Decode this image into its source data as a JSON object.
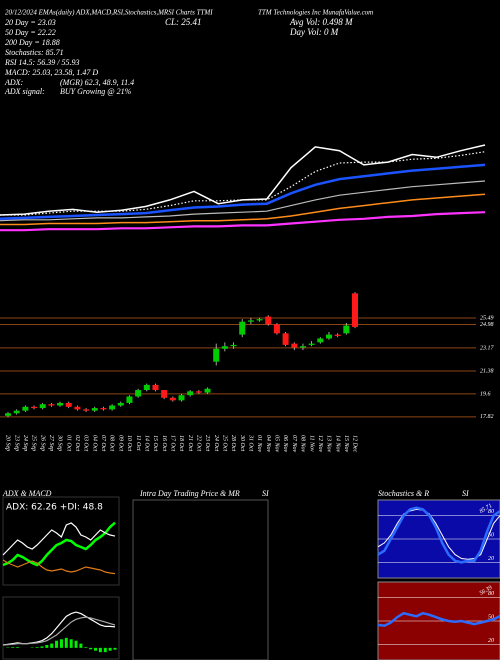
{
  "chart_data": [
    {
      "type": "line",
      "annotations": [
        "20/12/2024 EMAs(daily) ADX,MACD,RSI,Stochastics,MRSI Charts TTMI",
        "TTM Technologies Inc MunafaValue.com",
        "CL: 25.41",
        "Avg Vol: 0.498 M",
        "Day Vol: 0 M",
        "20 Day = 23.03",
        "50 Day = 22.22",
        "200 Day = 18.88",
        "Stochastics: 85.71",
        "RSI 14.5: 56.39 / 55.93",
        "MACD: 25.03, 23.58, 1.47 D",
        "ADX:",
        "(MGR) 62.3, 48.9, 11.4",
        "ADX  signal:",
        "BUY Growing @ 21%"
      ],
      "ylim": [
        15.36,
        26.99
      ],
      "series": [
        {
          "color": "#ffffff",
          "values": [
            18.0,
            18.1,
            18.4,
            18.6,
            18.3,
            18.5,
            18.9,
            19.6,
            20.5,
            19.2,
            19.6,
            19.7,
            23.0,
            25.2,
            24.8,
            23.3,
            23.6,
            24.4,
            24.1,
            24.8,
            25.4
          ]
        },
        {
          "color": "#ffffff",
          "dotted": true,
          "values": [
            18.0,
            18.0,
            18.2,
            18.4,
            18.4,
            18.4,
            18.6,
            19.0,
            19.5,
            19.5,
            19.6,
            19.6,
            21.0,
            22.6,
            23.5,
            23.6,
            23.6,
            23.9,
            24.0,
            24.3,
            24.7
          ]
        },
        {
          "color": "#1a53ff",
          "values": [
            17.6,
            17.7,
            17.8,
            17.9,
            18.0,
            18.1,
            18.2,
            18.5,
            18.8,
            18.9,
            19.1,
            19.2,
            20.3,
            21.2,
            21.8,
            22.1,
            22.4,
            22.7,
            22.9,
            23.1,
            23.3
          ]
        },
        {
          "color": "#bbbbbb",
          "values": [
            17.4,
            17.5,
            17.5,
            17.6,
            17.7,
            17.7,
            17.8,
            17.9,
            18.1,
            18.2,
            18.3,
            18.4,
            19.0,
            19.6,
            20.1,
            20.4,
            20.7,
            21.0,
            21.2,
            21.4,
            21.6
          ]
        },
        {
          "color": "#ff8c1a",
          "values": [
            17.0,
            17.0,
            17.1,
            17.1,
            17.1,
            17.2,
            17.2,
            17.3,
            17.4,
            17.4,
            17.5,
            17.6,
            17.9,
            18.3,
            18.7,
            19.0,
            19.3,
            19.6,
            19.8,
            20.0,
            20.2
          ]
        },
        {
          "color": "#ff33ff",
          "values": [
            16.4,
            16.4,
            16.5,
            16.5,
            16.5,
            16.6,
            16.6,
            16.7,
            16.8,
            16.8,
            16.9,
            16.9,
            17.1,
            17.3,
            17.5,
            17.6,
            17.8,
            17.9,
            18.1,
            18.2,
            18.3
          ]
        }
      ]
    },
    {
      "type": "candlestick",
      "categories": [
        "20 Sep",
        "23 Sep",
        "24 Sep",
        "25 Sep",
        "26 Sep",
        "27 Sep",
        "30 Sep",
        "01 Oct",
        "02 Oct",
        "03 Oct",
        "04 Oct",
        "07 Oct",
        "08 Oct",
        "09 Oct",
        "10 Oct",
        "11 Oct",
        "14 Oct",
        "15 Oct",
        "16 Oct",
        "17 Oct",
        "18 Oct",
        "21 Oct",
        "22 Oct",
        "23 Oct",
        "24 Oct",
        "25 Oct",
        "28 Oct",
        "30 Oct",
        "31 Oct",
        "01 Nov",
        "04 Nov",
        "05 Nov",
        "06 Nov",
        "07 Nov",
        "08 Nov",
        "11 Nov",
        "12 Nov",
        "13 Nov",
        "14 Nov",
        "15 Nov",
        "12 Dec"
      ],
      "open": [
        17.9,
        18.1,
        18.3,
        18.6,
        18.5,
        18.8,
        18.7,
        18.9,
        18.6,
        18.4,
        18.3,
        18.5,
        18.4,
        18.7,
        18.9,
        19.4,
        19.9,
        20.3,
        19.9,
        19.3,
        19.1,
        19.5,
        19.8,
        19.7,
        22.1,
        23.1,
        23.3,
        24.2,
        25.2,
        25.3,
        25.6,
        25.0,
        24.3,
        23.5,
        23.2,
        23.4,
        23.6,
        23.9,
        24.2,
        24.3,
        27.4
      ],
      "close": [
        18.1,
        18.3,
        18.6,
        18.5,
        18.8,
        18.7,
        18.9,
        18.6,
        18.4,
        18.3,
        18.5,
        18.4,
        18.7,
        18.9,
        19.4,
        19.9,
        20.3,
        19.9,
        19.3,
        19.1,
        19.5,
        19.8,
        19.7,
        20.0,
        23.1,
        23.3,
        23.4,
        25.2,
        25.3,
        25.4,
        25.0,
        24.3,
        23.4,
        23.2,
        23.3,
        23.5,
        23.9,
        24.2,
        24.1,
        24.9,
        24.8
      ],
      "high": [
        18.2,
        18.4,
        18.7,
        18.7,
        18.9,
        18.9,
        19.0,
        19.0,
        18.7,
        18.5,
        18.6,
        18.6,
        18.8,
        19.0,
        19.5,
        20.0,
        20.4,
        20.4,
        19.9,
        19.4,
        19.6,
        19.9,
        19.9,
        20.1,
        23.5,
        23.6,
        23.6,
        25.4,
        25.5,
        25.5,
        25.7,
        25.1,
        24.4,
        23.6,
        23.5,
        23.7,
        24.0,
        24.4,
        24.3,
        25.1,
        27.5
      ],
      "low": [
        17.8,
        18.0,
        18.2,
        18.4,
        18.4,
        18.6,
        18.6,
        18.5,
        18.3,
        18.2,
        18.2,
        18.3,
        18.3,
        18.6,
        18.8,
        19.3,
        19.8,
        19.8,
        19.2,
        19.0,
        19.0,
        19.4,
        19.6,
        19.6,
        21.8,
        22.9,
        23.1,
        24.0,
        25.0,
        25.2,
        24.9,
        24.2,
        23.3,
        23.0,
        23.0,
        23.3,
        23.5,
        23.8,
        24.0,
        24.2,
        24.7
      ],
      "up_color": "#00cc00",
      "down_color": "#ff1a1a",
      "grid_color": "#8b4513",
      "ylim": [
        16.8,
        27.66
      ],
      "yticks": [
        25.49,
        24.98,
        23.17,
        21.38,
        19.6,
        17.82
      ]
    },
    {
      "type": "line",
      "title": "ADX  & MACD",
      "annotations": [
        "ADX: 62.26  +DI: 48.8"
      ],
      "ylim": [
        0,
        80
      ],
      "series": [
        {
          "color": "#00ff00",
          "values": [
            20,
            22,
            25,
            30,
            28,
            25,
            22,
            20,
            24,
            30,
            35,
            40,
            42,
            45,
            44,
            40,
            38,
            36,
            40,
            45,
            48,
            52,
            58,
            62.3
          ]
        },
        {
          "color": "#ffffff",
          "values": [
            30,
            35,
            40,
            45,
            42,
            38,
            36,
            40,
            45,
            50,
            55,
            52,
            48,
            60,
            62,
            58,
            50,
            48,
            45,
            50,
            55,
            52,
            50,
            48.9
          ]
        },
        {
          "color": "#e07b1a",
          "values": [
            25,
            22,
            20,
            18,
            20,
            22,
            24,
            22,
            18,
            15,
            14,
            15,
            16,
            14,
            13,
            14,
            16,
            18,
            17,
            16,
            15,
            13,
            12,
            11.4
          ]
        }
      ]
    },
    {
      "type": "macd",
      "ylim": [
        -0.5,
        3
      ],
      "histogram": {
        "color": "#00ee00",
        "values": [
          0.0,
          0.03,
          0.05,
          0.05,
          0.0,
          0.0,
          0.03,
          0.05,
          0.1,
          0.2,
          0.3,
          0.5,
          0.6,
          0.7,
          0.6,
          0.5,
          0.3,
          0.05,
          -0.1,
          -0.2,
          -0.3,
          -0.3,
          -0.2,
          -0.13
        ]
      },
      "series": [
        {
          "color": "#ffffff",
          "values": [
            0.2,
            0.25,
            0.3,
            0.35,
            0.3,
            0.3,
            0.35,
            0.4,
            0.5,
            0.7,
            1.0,
            1.4,
            1.8,
            2.2,
            2.4,
            2.5,
            2.4,
            2.2,
            2.0,
            1.8,
            1.6,
            1.5,
            1.5,
            1.47
          ]
        },
        {
          "color": "#aaaaaa",
          "values": [
            0.2,
            0.22,
            0.25,
            0.3,
            0.3,
            0.3,
            0.32,
            0.35,
            0.4,
            0.5,
            0.7,
            0.9,
            1.2,
            1.5,
            1.8,
            2.0,
            2.1,
            2.15,
            2.1,
            2.0,
            1.9,
            1.8,
            1.7,
            1.6
          ]
        }
      ]
    },
    {
      "type": "intraday",
      "title": "Intra Day Trading Price & MR",
      "subtitle": "SI"
    },
    {
      "type": "oscillator",
      "title": "Stochastics & R",
      "subtitle": "SI",
      "background": "#0a0aa8",
      "annotations": [
        "85.71"
      ],
      "ylim": [
        0,
        100
      ],
      "yticks": [
        80,
        50,
        20
      ],
      "series": [
        {
          "color": "#ffffff",
          "values": [
            40,
            45,
            55,
            70,
            82,
            86,
            88,
            87,
            82,
            70,
            55,
            40,
            30,
            25,
            24,
            25,
            30,
            50,
            70,
            80
          ]
        },
        {
          "color": "#2b6cff",
          "values": [
            30,
            35,
            50,
            65,
            80,
            88,
            90,
            88,
            80,
            65,
            45,
            30,
            22,
            20,
            22,
            22,
            35,
            60,
            80,
            85.71
          ]
        }
      ]
    },
    {
      "type": "oscillator",
      "background": "#8b0000",
      "annotations": [
        "56.39"
      ],
      "ylim": [
        0,
        100
      ],
      "yticks": [
        80,
        50,
        20
      ],
      "series": [
        {
          "color": "#2b6cff",
          "values": [
            45,
            44,
            48,
            55,
            60,
            58,
            56,
            60,
            58,
            55,
            52,
            50,
            49,
            50,
            48,
            46,
            48,
            50,
            52,
            56.39
          ]
        }
      ]
    }
  ]
}
